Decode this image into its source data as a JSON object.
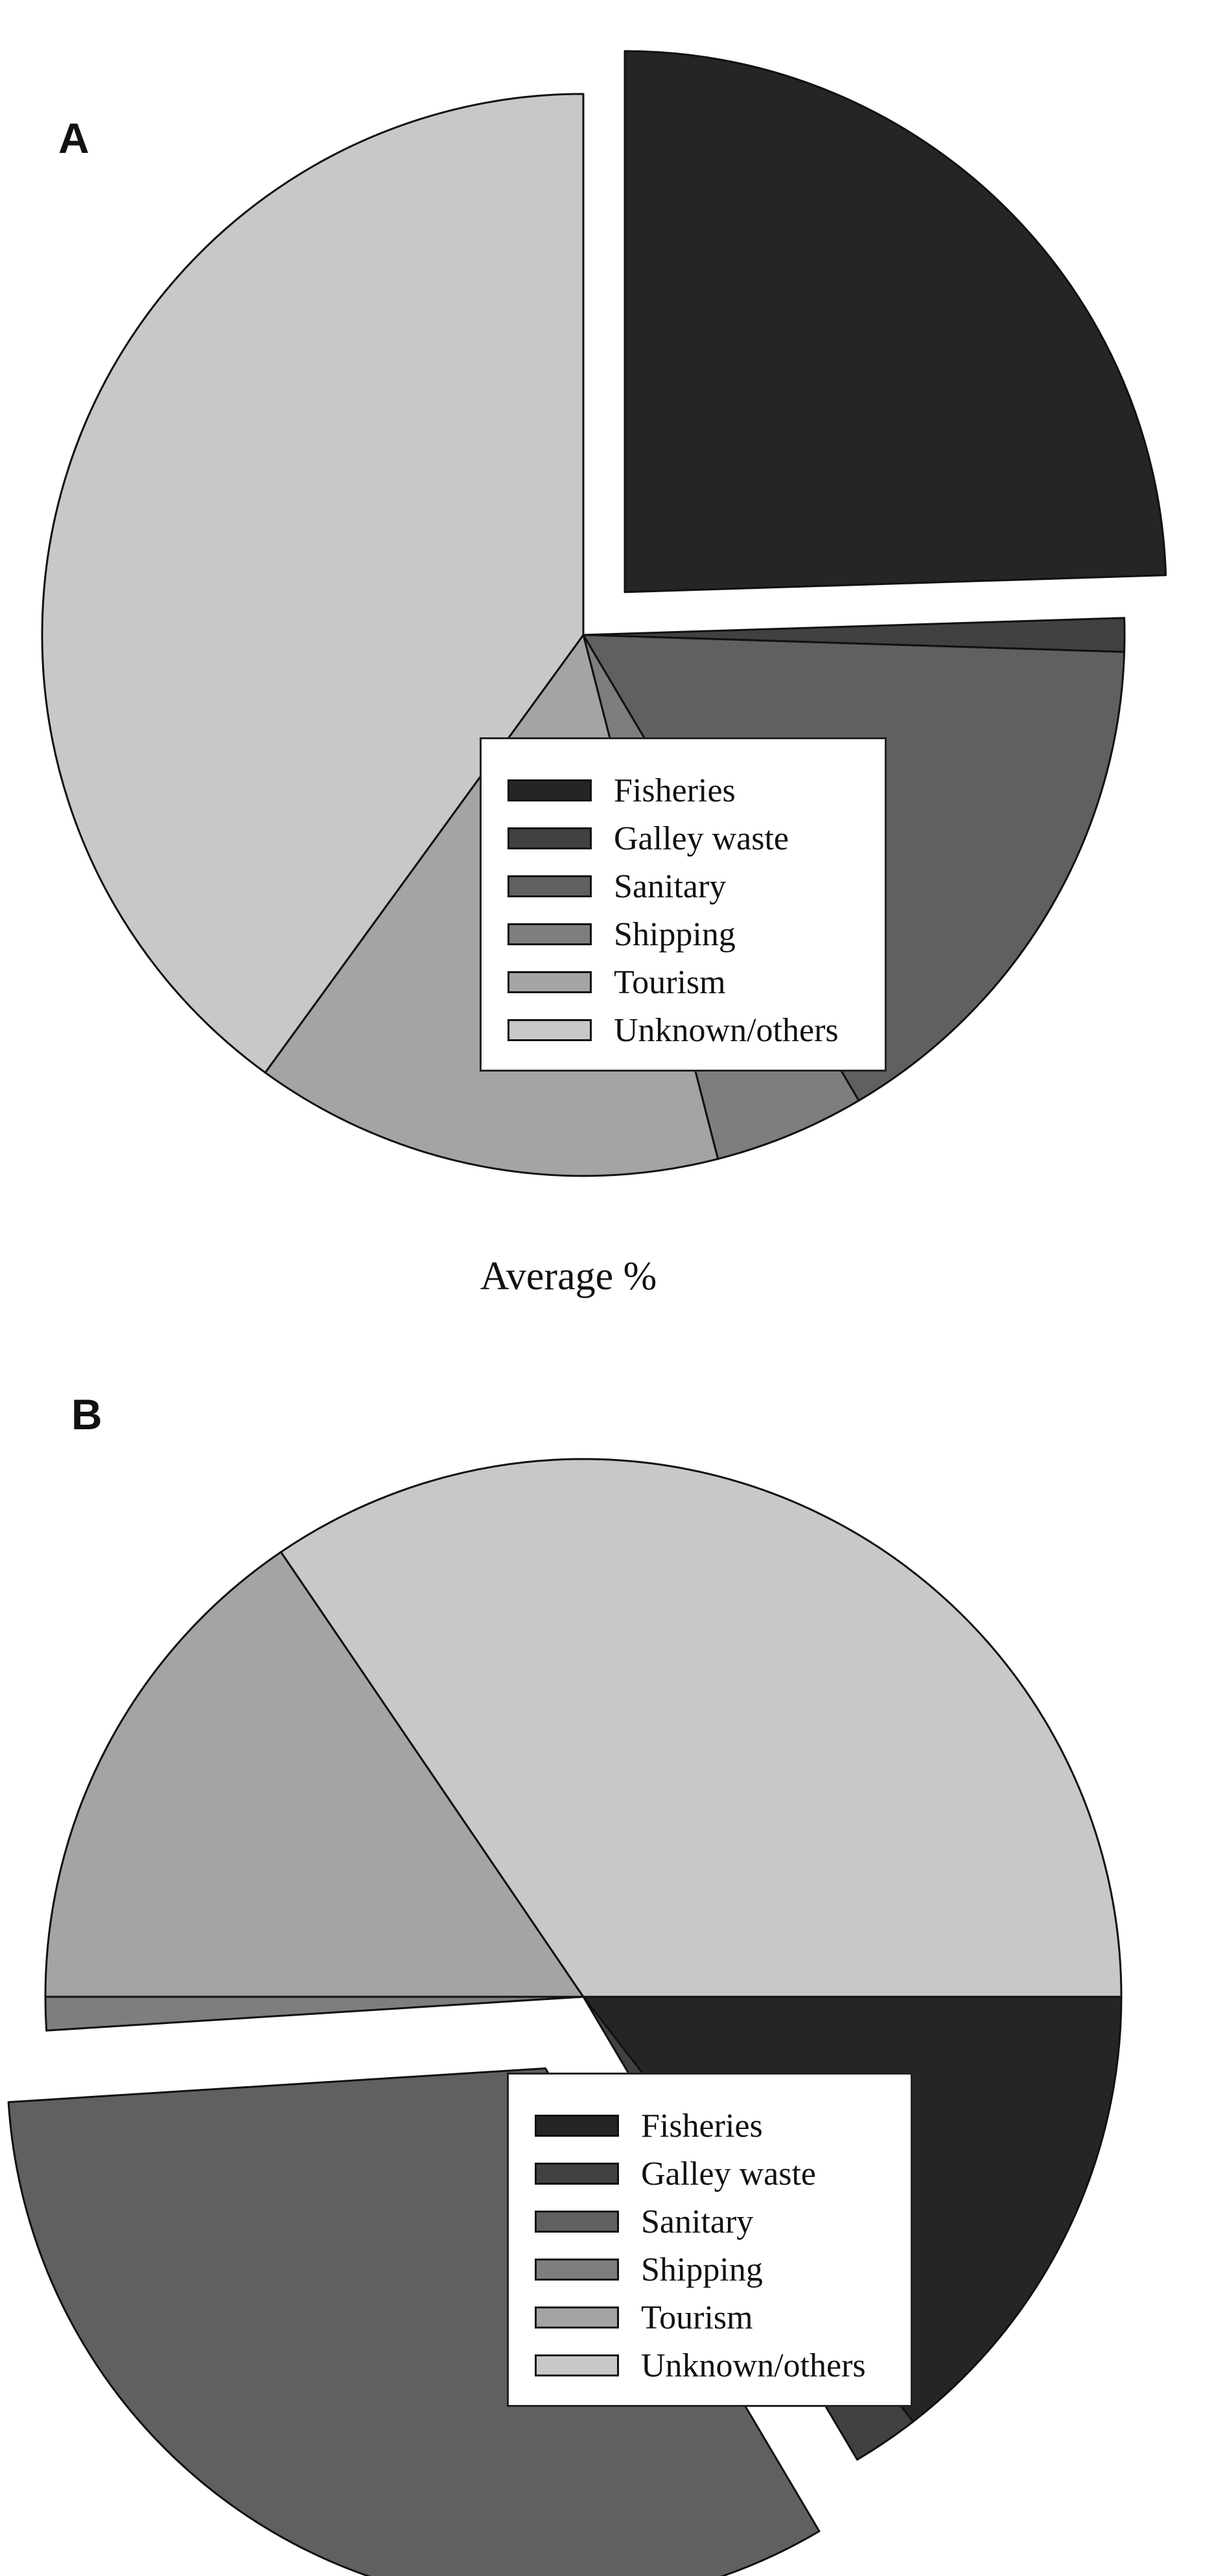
{
  "figure": {
    "caption": "Average %"
  },
  "chart_data": [
    {
      "type": "pie",
      "panel": "A",
      "categories": [
        "Fisheries",
        "Galley waste",
        "Sanitary",
        "Shipping",
        "Tourism",
        "Unknown/others"
      ],
      "values": [
        24.5,
        1.0,
        16.0,
        4.5,
        14.0,
        40.0
      ],
      "colors": [
        "#252525",
        "#414141",
        "#606060",
        "#7e7e7e",
        "#a4a4a4",
        "#c8c8c8"
      ],
      "exploded": "Fisheries",
      "legend_position": "inside-lower-right"
    },
    {
      "type": "pie",
      "panel": "B",
      "categories": [
        "Fisheries",
        "Galley waste",
        "Sanitary",
        "Shipping",
        "Tourism",
        "Unknown/others"
      ],
      "values": [
        14.5,
        2.0,
        32.5,
        1.0,
        15.5,
        34.5
      ],
      "colors": [
        "#252525",
        "#414141",
        "#606060",
        "#7e7e7e",
        "#a4a4a4",
        "#c8c8c8"
      ],
      "exploded": "Sanitary",
      "legend_position": "inside-lower-right"
    }
  ]
}
